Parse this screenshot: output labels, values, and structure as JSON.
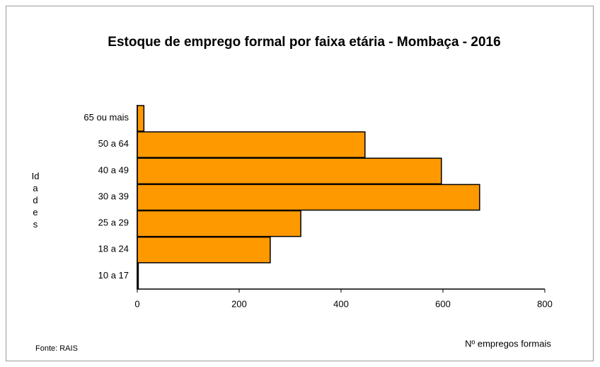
{
  "chart_data": {
    "type": "bar",
    "orientation": "horizontal",
    "title": "Estoque  de emprego formal por faixa etária - Mombaça - 2016",
    "categories": [
      "65 ou mais",
      "50 a 64",
      "40 a 49",
      "30 a 39",
      "25 a 29",
      "18 a 24",
      "10 a 17"
    ],
    "values": [
      13,
      447,
      597,
      672,
      321,
      261,
      2
    ],
    "color": "#ff9900",
    "xlim": [
      0,
      800
    ],
    "xticks": [
      0,
      200,
      400,
      600,
      800
    ],
    "x_label": "Nº empregos formais",
    "y_label": "Idades",
    "source": "Fonte: RAIS",
    "grid": false
  }
}
